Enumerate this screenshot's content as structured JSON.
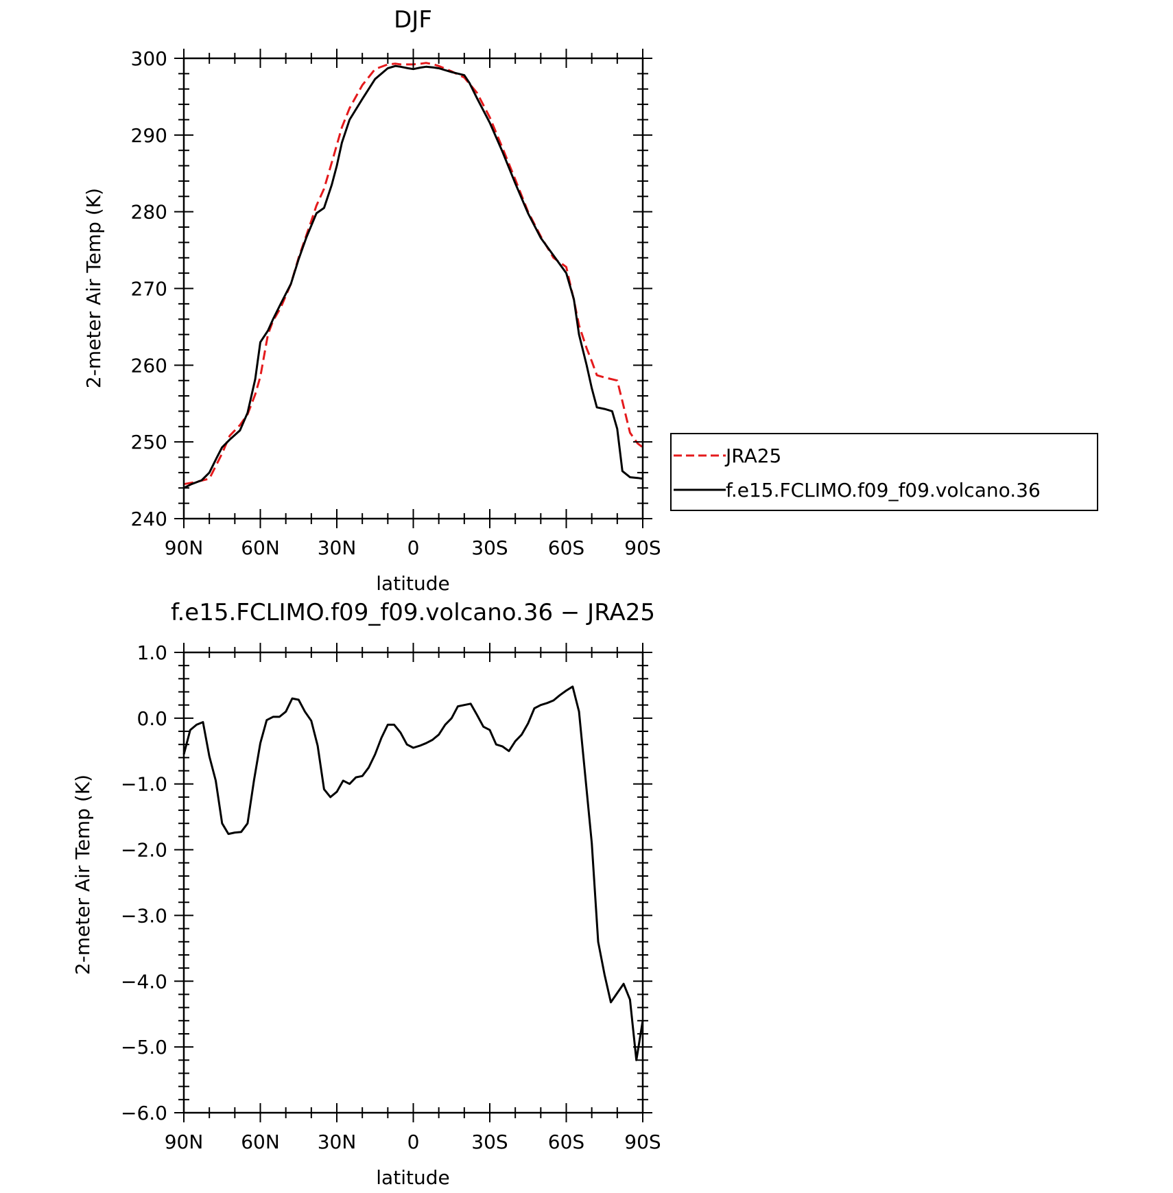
{
  "x_axis": {
    "categories": [
      "90N",
      "60N",
      "30N",
      "0",
      "30S",
      "60S",
      "90S"
    ],
    "lat_values": [
      90,
      60,
      30,
      0,
      -30,
      -60,
      -90
    ]
  },
  "legend": {
    "entries": [
      {
        "label": "JRA25",
        "color": "#e41a1c",
        "dash": "dashed"
      },
      {
        "label": "f.e15.FCLIMO.f09_f09.volcano.36",
        "color": "#000000",
        "dash": "solid"
      }
    ],
    "placement": "right"
  },
  "chart_data": [
    {
      "type": "line",
      "title": "DJF",
      "xlabel": "latitude",
      "ylabel": "2-meter Air Temp (K)",
      "xlim": [
        90,
        -90
      ],
      "ylim": [
        240,
        300
      ],
      "yticks": [
        "300",
        "290",
        "280",
        "270",
        "260",
        "250",
        "240"
      ],
      "ytick_values": [
        300,
        290,
        280,
        270,
        260,
        250,
        240
      ],
      "series": [
        {
          "name": "JRA25",
          "color": "#e41a1c",
          "dash": "dashed",
          "x": [
            90,
            85,
            80,
            75,
            72,
            68,
            65,
            62,
            60,
            57,
            55,
            52,
            48,
            45,
            40,
            38,
            35,
            32,
            28,
            25,
            20,
            15,
            10,
            7,
            5,
            0,
            -3,
            -5,
            -8,
            -10,
            -15,
            -20,
            -25,
            -30,
            -35,
            -40,
            -45,
            -50,
            -55,
            -60,
            -63,
            -65,
            -68,
            -70,
            -72,
            -75,
            -80,
            -82,
            -85,
            -88,
            -90
          ],
          "y": [
            244.5,
            244.8,
            245.2,
            248.5,
            250.8,
            252.2,
            253.6,
            256.2,
            258.5,
            264.0,
            265.8,
            267.5,
            270.6,
            274.0,
            278.8,
            280.8,
            283.0,
            286.4,
            291.0,
            293.5,
            296.5,
            298.6,
            299.2,
            299.3,
            299.2,
            299.2,
            299.3,
            299.4,
            299.2,
            299.0,
            298.3,
            297.5,
            295.5,
            292.3,
            288.3,
            284.2,
            280.0,
            276.8,
            274.0,
            272.8,
            268.5,
            265.2,
            262.2,
            260.5,
            258.7,
            258.4,
            258.0,
            255.3,
            251.2,
            249.8,
            249.3
          ]
        },
        {
          "name": "f.e15.FCLIMO.f09_f09.volcano.36",
          "color": "#000000",
          "dash": "solid",
          "x": [
            90,
            87,
            83,
            80,
            77,
            75,
            72,
            68,
            65,
            62,
            60,
            57,
            55,
            52,
            48,
            45,
            42,
            38,
            35,
            32,
            30,
            28,
            25,
            20,
            15,
            10,
            7,
            5,
            2,
            0,
            -3,
            -5,
            -8,
            -10,
            -15,
            -20,
            -22,
            -25,
            -30,
            -35,
            -40,
            -45,
            -50,
            -55,
            -60,
            -63,
            -65,
            -68,
            -70,
            -72,
            -75,
            -78,
            -80,
            -82,
            -85,
            -88,
            -90
          ],
          "y": [
            244.0,
            244.5,
            245.0,
            246.0,
            248.0,
            249.3,
            250.3,
            251.5,
            253.8,
            258.2,
            263.0,
            264.5,
            266.0,
            268.0,
            270.6,
            273.8,
            276.6,
            279.8,
            280.5,
            283.5,
            286.0,
            289.0,
            292.0,
            294.7,
            297.3,
            298.7,
            299.0,
            298.9,
            298.7,
            298.6,
            298.8,
            298.9,
            298.8,
            298.7,
            298.2,
            297.8,
            296.8,
            294.8,
            291.6,
            287.8,
            283.7,
            279.8,
            276.6,
            274.3,
            272.0,
            268.6,
            264.0,
            260.0,
            257.0,
            254.5,
            254.3,
            254.0,
            251.7,
            246.2,
            245.4,
            245.3,
            245.2
          ]
        }
      ]
    },
    {
      "type": "line",
      "title": "f.e15.FCLIMO.f09_f09.volcano.36 − JRA25",
      "xlabel": "latitude",
      "ylabel": "2-meter Air Temp (K)",
      "xlim": [
        90,
        -90
      ],
      "ylim": [
        -6.0,
        1.0
      ],
      "yticks": [
        "1.0",
        "0.0",
        "−1.0",
        "−2.0",
        "−3.0",
        "−4.0",
        "−5.0",
        "−6.0"
      ],
      "ytick_values": [
        1,
        0,
        -1,
        -2,
        -3,
        -4,
        -5,
        -6
      ],
      "series": [
        {
          "color": "#000000",
          "dash": "solid",
          "x": [
            90,
            87.5,
            85,
            82.5,
            80,
            77.5,
            75,
            72.5,
            70,
            67.5,
            65,
            62.5,
            60,
            57.5,
            55,
            52.5,
            50,
            47.5,
            45,
            42.5,
            40,
            37.5,
            35,
            32.5,
            30,
            27.5,
            25,
            22.5,
            20,
            17.5,
            15,
            12.5,
            10,
            7.5,
            5,
            2.5,
            0,
            -2.5,
            -5,
            -7.5,
            -10,
            -12.5,
            -15,
            -17.5,
            -20,
            -22.5,
            -25,
            -27.5,
            -30,
            -32.5,
            -35,
            -37.5,
            -40,
            -42.5,
            -45,
            -47.5,
            -50,
            -52.5,
            -55,
            -57.5,
            -60,
            -62.5,
            -65,
            -67.5,
            -70,
            -72.5,
            -75,
            -77.5,
            -80,
            -82.5,
            -85,
            -87.5,
            -90
          ],
          "y": [
            -0.55,
            -0.18,
            -0.1,
            -0.06,
            -0.58,
            -0.95,
            -1.6,
            -1.76,
            -1.74,
            -1.73,
            -1.6,
            -0.95,
            -0.38,
            -0.03,
            0.02,
            0.02,
            0.1,
            0.3,
            0.28,
            0.1,
            -0.04,
            -0.42,
            -1.08,
            -1.2,
            -1.12,
            -0.95,
            -1.0,
            -0.9,
            -0.88,
            -0.75,
            -0.55,
            -0.3,
            -0.1,
            -0.1,
            -0.22,
            -0.4,
            -0.45,
            -0.42,
            -0.38,
            -0.33,
            -0.25,
            -0.1,
            0.0,
            0.18,
            0.2,
            0.22,
            0.05,
            -0.13,
            -0.18,
            -0.4,
            -0.43,
            -0.5,
            -0.35,
            -0.25,
            -0.08,
            0.15,
            0.2,
            0.23,
            0.27,
            0.35,
            0.42,
            0.48,
            0.1,
            -0.9,
            -1.9,
            -3.4,
            -3.9,
            -4.32,
            -4.18,
            -4.04,
            -4.28,
            -5.2,
            -4.6
          ]
        }
      ]
    }
  ]
}
